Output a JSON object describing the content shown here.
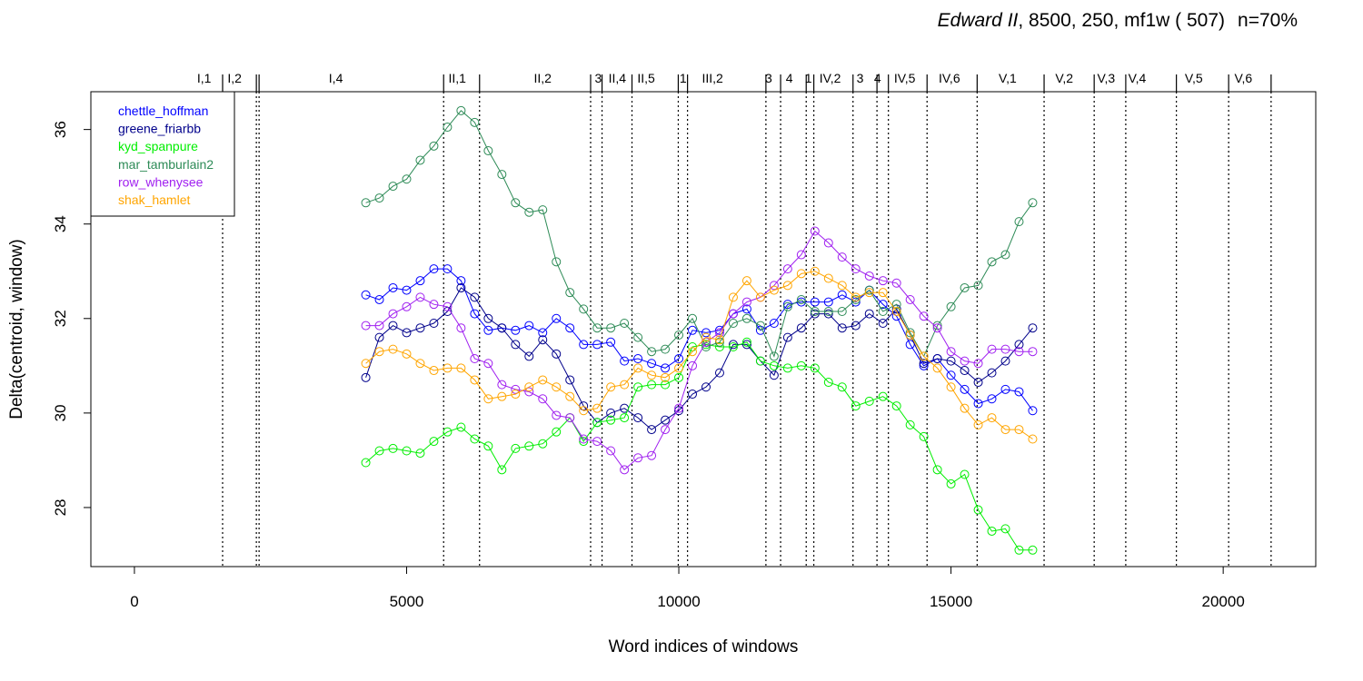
{
  "chart_data": {
    "type": "line",
    "title": {
      "italic": "Edward II",
      "rest": ", 8500, 250, mf1w ( 507)",
      "n": "n=70%"
    },
    "xlabel": "Word indices of windows",
    "ylabel": "Delta(centroid, window)",
    "xlim": [
      -800,
      21700
    ],
    "ylim": [
      26.75,
      36.8
    ],
    "xticks": [
      0,
      5000,
      10000,
      15000,
      20000
    ],
    "xtick_labels": [
      "0",
      "5000",
      "10000",
      "15000",
      "20000"
    ],
    "yticks": [
      28,
      30,
      32,
      34,
      36
    ],
    "ytick_labels": [
      "28",
      "30",
      "32",
      "34",
      "36"
    ],
    "grid": false,
    "legend_position": "top-left",
    "scene_boundaries": [
      1620,
      2240,
      2290,
      5680,
      6340,
      8380,
      8590,
      9140,
      9990,
      10160,
      11600,
      11870,
      12340,
      12480,
      13200,
      13640,
      13850,
      14560,
      15480,
      16710,
      17630,
      18210,
      19140,
      20100,
      20880
    ],
    "scene_labels": [
      {
        "x": 1280,
        "label": "I,1"
      },
      {
        "x": 1840,
        "label": "I,2"
      },
      {
        "x": 3700,
        "label": "I,4"
      },
      {
        "x": 5930,
        "label": "II,1"
      },
      {
        "x": 7500,
        "label": "II,2"
      },
      {
        "x": 8520,
        "label": "3"
      },
      {
        "x": 8870,
        "label": "II,4"
      },
      {
        "x": 9400,
        "label": "II,5"
      },
      {
        "x": 10080,
        "label": "1"
      },
      {
        "x": 10620,
        "label": "III,2"
      },
      {
        "x": 11650,
        "label": "3"
      },
      {
        "x": 12030,
        "label": "4"
      },
      {
        "x": 12380,
        "label": "1"
      },
      {
        "x": 12780,
        "label": "IV,2"
      },
      {
        "x": 13330,
        "label": "3"
      },
      {
        "x": 13650,
        "label": "4"
      },
      {
        "x": 14150,
        "label": "IV,5"
      },
      {
        "x": 14970,
        "label": "IV,6"
      },
      {
        "x": 16040,
        "label": "V,1"
      },
      {
        "x": 17080,
        "label": "V,2"
      },
      {
        "x": 17850,
        "label": "V,3"
      },
      {
        "x": 18420,
        "label": "V,4"
      },
      {
        "x": 19460,
        "label": "V,5"
      },
      {
        "x": 20370,
        "label": "V,6"
      }
    ],
    "x": [
      4250,
      4500,
      4750,
      5000,
      5250,
      5500,
      5750,
      6000,
      6250,
      6500,
      6750,
      7000,
      7250,
      7500,
      7750,
      8000,
      8250,
      8500,
      8750,
      9000,
      9250,
      9500,
      9750,
      10000,
      10250,
      10500,
      10750,
      11000,
      11250,
      11500,
      11750,
      12000,
      12250,
      12500,
      12750,
      13000,
      13250,
      13500,
      13750,
      14000,
      14250,
      14500,
      14750,
      15000,
      15250,
      15500,
      15750,
      16000,
      16250,
      16500
    ],
    "series": [
      {
        "name": "chettle_hoffman",
        "color": "#0000FF",
        "values": [
          32.5,
          32.4,
          32.65,
          32.6,
          32.8,
          33.05,
          33.05,
          32.8,
          32.1,
          31.75,
          31.8,
          31.75,
          31.85,
          31.7,
          32.0,
          31.8,
          31.45,
          31.45,
          31.5,
          31.1,
          31.15,
          31.05,
          30.95,
          31.15,
          31.75,
          31.7,
          31.75,
          32.1,
          32.2,
          31.75,
          31.9,
          32.3,
          32.35,
          32.35,
          32.35,
          32.5,
          32.35,
          32.6,
          32.3,
          32.05,
          31.45,
          31.0,
          31.15,
          30.8,
          30.5,
          30.2,
          30.3,
          30.5,
          30.45,
          30.05
        ]
      },
      {
        "name": "greene_friarbb",
        "color": "#00008B",
        "values": [
          30.75,
          31.6,
          31.85,
          31.7,
          31.8,
          31.9,
          32.15,
          32.65,
          32.45,
          32.0,
          31.8,
          31.45,
          31.2,
          31.55,
          31.25,
          30.7,
          30.15,
          29.8,
          30.0,
          30.1,
          29.9,
          29.65,
          29.85,
          30.05,
          30.4,
          30.55,
          30.85,
          31.45,
          31.45,
          31.1,
          30.8,
          31.6,
          31.8,
          32.1,
          32.1,
          31.8,
          31.85,
          32.1,
          31.9,
          32.2,
          31.65,
          31.05,
          31.15,
          31.1,
          30.9,
          30.65,
          30.85,
          31.1,
          31.45,
          31.8
        ]
      },
      {
        "name": "kyd_spanpure",
        "color": "#00EE00",
        "values": [
          28.95,
          29.2,
          29.25,
          29.2,
          29.15,
          29.4,
          29.6,
          29.7,
          29.45,
          29.3,
          28.8,
          29.25,
          29.3,
          29.35,
          29.6,
          29.9,
          29.4,
          29.8,
          29.85,
          29.9,
          30.55,
          30.6,
          30.6,
          30.75,
          31.4,
          31.45,
          31.4,
          31.4,
          31.5,
          31.1,
          31.0,
          30.95,
          31.0,
          30.95,
          30.65,
          30.55,
          30.15,
          30.25,
          30.35,
          30.15,
          29.75,
          29.5,
          28.8,
          28.5,
          28.7,
          27.95,
          27.5,
          27.55,
          27.1,
          27.1
        ]
      },
      {
        "name": "mar_tamburlain2",
        "color": "#2E8B57",
        "values": [
          34.45,
          34.55,
          34.8,
          34.95,
          35.35,
          35.65,
          36.05,
          36.4,
          36.15,
          35.55,
          35.05,
          34.45,
          34.25,
          34.3,
          33.2,
          32.55,
          32.2,
          31.8,
          31.8,
          31.9,
          31.6,
          31.3,
          31.35,
          31.65,
          32.0,
          31.4,
          31.5,
          31.9,
          32.0,
          31.85,
          31.2,
          32.25,
          32.4,
          32.15,
          32.15,
          32.15,
          32.4,
          32.6,
          32.15,
          32.3,
          31.7,
          31.2,
          31.85,
          32.25,
          32.65,
          32.7,
          33.2,
          33.35,
          34.05,
          34.45
        ]
      },
      {
        "name": "row_whenysee",
        "color": "#A020F0",
        "values": [
          31.85,
          31.85,
          32.1,
          32.25,
          32.45,
          32.3,
          32.25,
          31.8,
          31.15,
          31.05,
          30.6,
          30.5,
          30.45,
          30.3,
          29.95,
          29.9,
          29.45,
          29.4,
          29.2,
          28.8,
          29.05,
          29.1,
          29.65,
          30.1,
          31.0,
          31.5,
          31.7,
          32.1,
          32.35,
          32.45,
          32.7,
          33.05,
          33.35,
          33.85,
          33.6,
          33.3,
          33.05,
          32.9,
          32.8,
          32.75,
          32.4,
          32.05,
          31.8,
          31.3,
          31.1,
          31.05,
          31.35,
          31.35,
          31.3,
          31.3
        ]
      },
      {
        "name": "shak_hamlet",
        "color": "#FFA500",
        "values": [
          31.05,
          31.3,
          31.35,
          31.25,
          31.05,
          30.9,
          30.95,
          30.95,
          30.7,
          30.3,
          30.35,
          30.4,
          30.55,
          30.7,
          30.55,
          30.35,
          30.05,
          30.1,
          30.55,
          30.6,
          30.95,
          30.8,
          30.75,
          30.95,
          31.3,
          31.6,
          31.55,
          32.45,
          32.8,
          32.45,
          32.6,
          32.7,
          32.95,
          33.0,
          32.85,
          32.7,
          32.45,
          32.55,
          32.55,
          32.15,
          31.65,
          31.2,
          30.95,
          30.55,
          30.1,
          29.75,
          29.9,
          29.65,
          29.65,
          29.45
        ]
      }
    ]
  }
}
